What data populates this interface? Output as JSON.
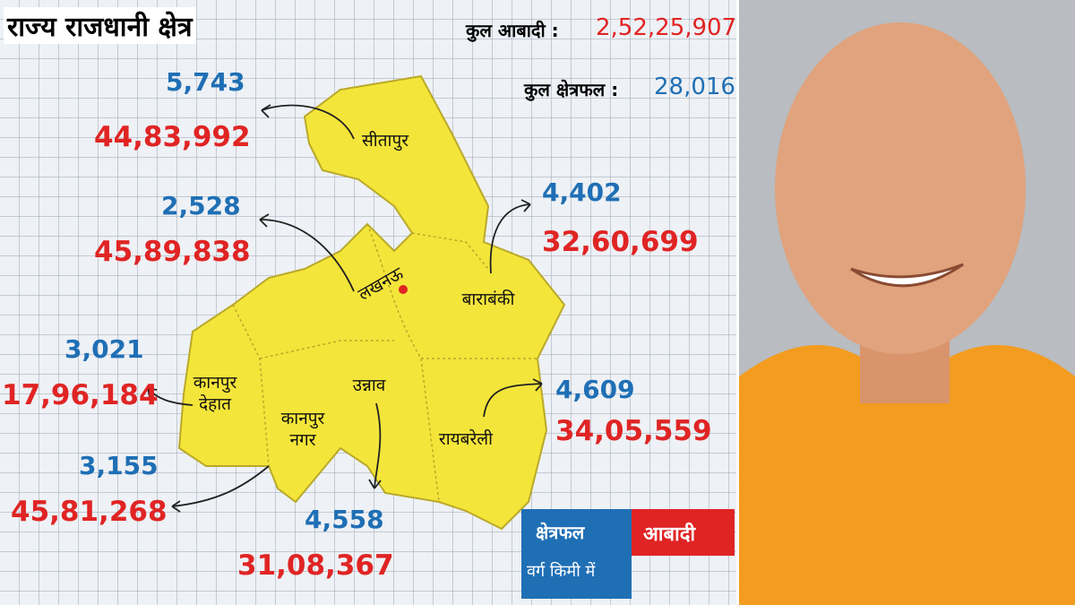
{
  "header": {
    "title": "राज्य राजधानी क्षेत्र",
    "total_population": {
      "label": "कुल आबादी :",
      "value": "2,52,25,907"
    },
    "total_area": {
      "label": "कुल क्षेत्रफल :",
      "value": "28,016"
    }
  },
  "districts": [
    {
      "name": "सीतापुर",
      "area": "5,743",
      "population": "44,83,992"
    },
    {
      "name": "लखनऊ",
      "area": "2,528",
      "population": "45,89,838"
    },
    {
      "name": "बाराबंकी",
      "area": "4,402",
      "population": "32,60,699"
    },
    {
      "name": "रायबरेली",
      "area": "4,609",
      "population": "34,05,559"
    },
    {
      "name": "उन्नाव",
      "area": "4,558",
      "population": "31,08,367"
    },
    {
      "name": "कानपुर देहात",
      "area": "3,021",
      "population": "17,96,184"
    },
    {
      "name": "कानपुर नगर",
      "area": "3,155",
      "population": "45,81,268"
    }
  ],
  "legend": {
    "area": "क्षेत्रफल",
    "area_unit": "वर्ग किमी में",
    "population": "आबादी"
  }
}
